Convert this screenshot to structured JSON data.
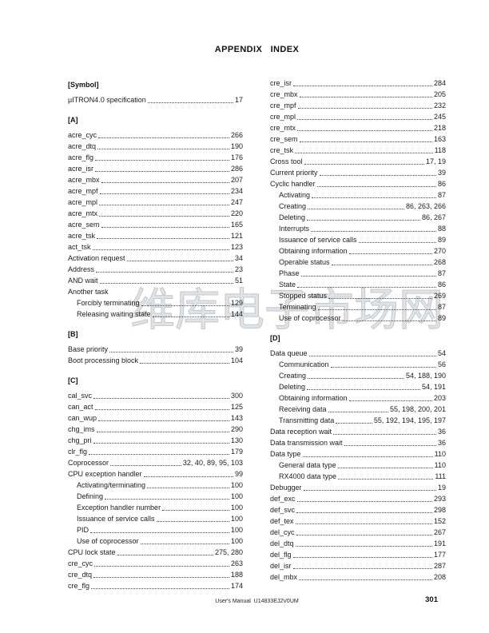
{
  "page": {
    "title": "APPENDIX   INDEX",
    "watermark_text": "维库电子市场网",
    "footer": {
      "manual_label": "User's Manual  U14833EJ2V0UM",
      "page_number": "301"
    }
  },
  "index": {
    "left_column": [
      {
        "header": "[Symbol]"
      },
      {
        "term": "μITRON4.0 specification",
        "pages": "17"
      },
      {
        "header": "[A]"
      },
      {
        "term": "acre_cyc",
        "pages": "266"
      },
      {
        "term": "acre_dtq",
        "pages": "190"
      },
      {
        "term": "acre_flg",
        "pages": "176"
      },
      {
        "term": "acre_isr",
        "pages": "286"
      },
      {
        "term": "acre_mbx",
        "pages": "207"
      },
      {
        "term": "acre_mpf",
        "pages": "234"
      },
      {
        "term": "acre_mpl",
        "pages": "247"
      },
      {
        "term": "acre_mtx",
        "pages": "220"
      },
      {
        "term": "acre_sem",
        "pages": "165"
      },
      {
        "term": "acre_tsk",
        "pages": "121"
      },
      {
        "term": "act_tsk",
        "pages": "123"
      },
      {
        "term": "Activation request",
        "pages": "34"
      },
      {
        "term": "Address",
        "pages": "23"
      },
      {
        "term": "AND wait",
        "pages": "51"
      },
      {
        "term": "Another task",
        "pages": ""
      },
      {
        "term": "Forcibly terminating",
        "pages": "129",
        "indent": true
      },
      {
        "term": "Releasing waiting state",
        "pages": "144",
        "indent": true
      },
      {
        "header": "[B]"
      },
      {
        "term": "Base priority",
        "pages": "39"
      },
      {
        "term": "Boot processing block",
        "pages": "104"
      },
      {
        "header": "[C]"
      },
      {
        "term": "cal_svc",
        "pages": "300"
      },
      {
        "term": "can_act",
        "pages": "125"
      },
      {
        "term": "can_wup",
        "pages": "143"
      },
      {
        "term": "chg_ims",
        "pages": "290"
      },
      {
        "term": "chg_pri",
        "pages": "130"
      },
      {
        "term": "clr_flg",
        "pages": "179"
      },
      {
        "term": "Coprocessor",
        "pages": "32, 40, 89, 95, 103"
      },
      {
        "term": "CPU exception handler",
        "pages": "99"
      },
      {
        "term": "Activating/terminating",
        "pages": "100",
        "indent": true
      },
      {
        "term": "Defining",
        "pages": "100",
        "indent": true
      },
      {
        "term": "Exception handler number",
        "pages": "100",
        "indent": true
      },
      {
        "term": "Issuance of service calls",
        "pages": "100",
        "indent": true
      },
      {
        "term": "PID",
        "pages": "100",
        "indent": true
      },
      {
        "term": "Use of coprocessor",
        "pages": "100",
        "indent": true
      },
      {
        "term": "CPU lock state",
        "pages": "275, 280"
      },
      {
        "term": "cre_cyc",
        "pages": "263"
      },
      {
        "term": "cre_dtq",
        "pages": "188"
      },
      {
        "term": "cre_flg",
        "pages": "174"
      }
    ],
    "right_column": [
      {
        "term": "cre_isr",
        "pages": "284"
      },
      {
        "term": "cre_mbx",
        "pages": "205"
      },
      {
        "term": "cre_mpf",
        "pages": "232"
      },
      {
        "term": "cre_mpl",
        "pages": "245"
      },
      {
        "term": "cre_mtx",
        "pages": "218"
      },
      {
        "term": "cre_sem",
        "pages": "163"
      },
      {
        "term": "cre_tsk",
        "pages": "118"
      },
      {
        "term": "Cross tool",
        "pages": "17, 19"
      },
      {
        "term": "Current priority",
        "pages": "39"
      },
      {
        "term": "Cyclic handler",
        "pages": "86"
      },
      {
        "term": "Activating",
        "pages": "87",
        "indent": true
      },
      {
        "term": "Creating",
        "pages": "86, 263, 266",
        "indent": true
      },
      {
        "term": "Deleting",
        "pages": "86, 267",
        "indent": true
      },
      {
        "term": "Interrupts",
        "pages": "88",
        "indent": true
      },
      {
        "term": "Issuance of service calls",
        "pages": "89",
        "indent": true
      },
      {
        "term": "Obtaining information",
        "pages": "270",
        "indent": true
      },
      {
        "term": "Operable status",
        "pages": "268",
        "indent": true
      },
      {
        "term": "Phase",
        "pages": "87",
        "indent": true
      },
      {
        "term": "State",
        "pages": "86",
        "indent": true
      },
      {
        "term": "Stopped status",
        "pages": "269",
        "indent": true
      },
      {
        "term": "Terminating",
        "pages": "87",
        "indent": true
      },
      {
        "term": "Use of coprocessor",
        "pages": "89",
        "indent": true
      },
      {
        "header": "[D]"
      },
      {
        "term": "Data queue",
        "pages": "54"
      },
      {
        "term": "Communication",
        "pages": "56",
        "indent": true
      },
      {
        "term": "Creating",
        "pages": "54, 188, 190",
        "indent": true
      },
      {
        "term": "Deleting",
        "pages": "54, 191",
        "indent": true
      },
      {
        "term": "Obtaining information",
        "pages": "203",
        "indent": true
      },
      {
        "term": "Receiving data",
        "pages": "55, 198, 200, 201",
        "indent": true
      },
      {
        "term": "Transmitting data",
        "pages": "55, 192, 194, 195, 197",
        "indent": true
      },
      {
        "term": "Data reception wait",
        "pages": "36"
      },
      {
        "term": "Data transmission wait",
        "pages": "36"
      },
      {
        "term": "Data type",
        "pages": "110"
      },
      {
        "term": "General data type",
        "pages": "110",
        "indent": true
      },
      {
        "term": "RX4000 data type",
        "pages": "111",
        "indent": true
      },
      {
        "term": "Debugger",
        "pages": "19"
      },
      {
        "term": "def_exc",
        "pages": "293"
      },
      {
        "term": "def_svc",
        "pages": "298"
      },
      {
        "term": "def_tex",
        "pages": "152"
      },
      {
        "term": "del_cyc",
        "pages": "267"
      },
      {
        "term": "del_dtq",
        "pages": "191"
      },
      {
        "term": "del_flg",
        "pages": "177"
      },
      {
        "term": "del_isr",
        "pages": "287"
      },
      {
        "term": "del_mbx",
        "pages": "208"
      }
    ]
  }
}
